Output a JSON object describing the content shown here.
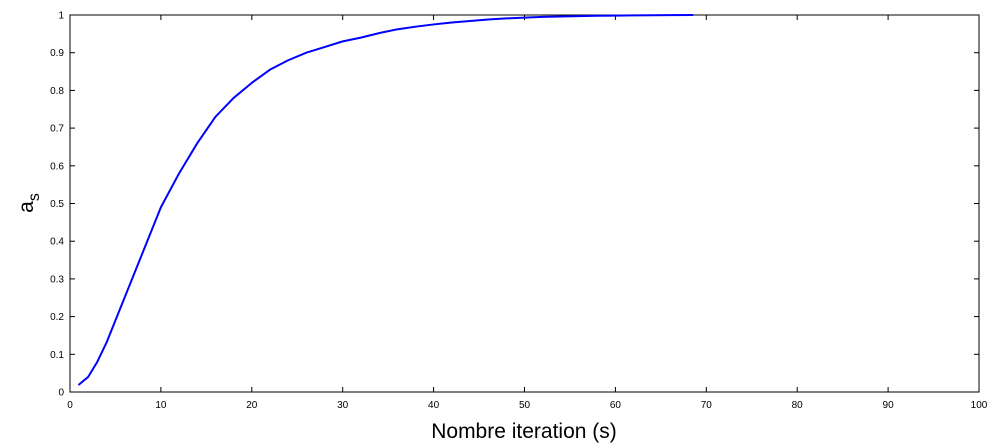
{
  "chart_data": {
    "type": "line",
    "title": "",
    "xlabel": "Nombre iteration (s)",
    "ylabel": "a",
    "ylabel_subscript": "s",
    "xlim": [
      0,
      100
    ],
    "ylim": [
      0,
      1
    ],
    "x_ticks": [
      0,
      10,
      20,
      30,
      40,
      50,
      60,
      70,
      80,
      90,
      100
    ],
    "y_ticks": [
      0,
      0.1,
      0.2,
      0.3,
      0.4,
      0.5,
      0.6,
      0.7,
      0.8,
      0.9,
      1
    ],
    "x_tick_labels": [
      "0",
      "10",
      "20",
      "30",
      "40",
      "50",
      "60",
      "70",
      "80",
      "90",
      "100"
    ],
    "y_tick_labels": [
      "0",
      "0.1",
      "0.2",
      "0.3",
      "0.4",
      "0.5",
      "0.6",
      "0.7",
      "0.8",
      "0.9",
      "1"
    ],
    "grid": false,
    "legend": "none",
    "series": [
      {
        "color": "#0000ff",
        "x": [
          1,
          2,
          3,
          4,
          5,
          6,
          7,
          8,
          9,
          10,
          12,
          14,
          16,
          18,
          20,
          22,
          24,
          26,
          28,
          30,
          32,
          34,
          36,
          38,
          40,
          42,
          44,
          46,
          48,
          50,
          52,
          54,
          56,
          58,
          60,
          62,
          64,
          66,
          68.5
        ],
        "y": [
          0.02,
          0.04,
          0.08,
          0.13,
          0.19,
          0.25,
          0.31,
          0.37,
          0.43,
          0.49,
          0.58,
          0.66,
          0.73,
          0.78,
          0.82,
          0.855,
          0.88,
          0.9,
          0.915,
          0.93,
          0.94,
          0.952,
          0.962,
          0.969,
          0.975,
          0.98,
          0.984,
          0.988,
          0.991,
          0.993,
          0.995,
          0.996,
          0.997,
          0.998,
          0.9985,
          0.999,
          0.9993,
          0.9996,
          1.0
        ]
      }
    ]
  }
}
